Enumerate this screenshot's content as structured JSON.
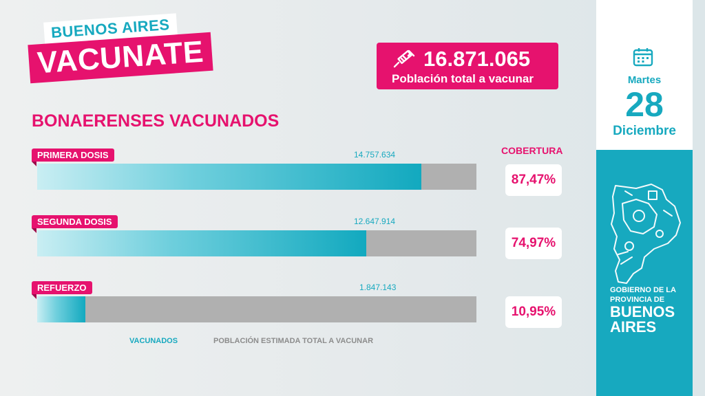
{
  "logo": {
    "top": "BUENOS AIRES",
    "bottom": "VACUNATE"
  },
  "population": {
    "value": "16.871.065",
    "label": "Población total a vacunar",
    "icon": "syringe-icon"
  },
  "title": "BONAERENSES VACUNADOS",
  "coverage_title": "COBERTURA",
  "rows": [
    {
      "label": "PRIMERA DOSIS",
      "value": "14.757.634",
      "coverage": "87,47%"
    },
    {
      "label": "SEGUNDA DOSIS",
      "value": "12.647.914",
      "coverage": "74,97%"
    },
    {
      "label": "REFUERZO",
      "value": "1.847.143",
      "coverage": "10,95%"
    }
  ],
  "legend": {
    "vaccinated": "VACUNADOS",
    "population": "POBLACIÓN ESTIMADA TOTAL A VACUNAR"
  },
  "date": {
    "weekday": "Martes",
    "day": "28",
    "month": "Diciembre",
    "icon": "calendar-icon"
  },
  "government": {
    "line1": "GOBIERNO DE LA",
    "line2": "PROVINCIA DE",
    "line3": "BUENOS",
    "line4": "AIRES"
  },
  "colors": {
    "accent": "#e6126e",
    "teal": "#17a9bf",
    "track": "#b0b0b0"
  },
  "chart_data": {
    "type": "bar",
    "orientation": "horizontal",
    "categories": [
      "PRIMERA DOSIS",
      "SEGUNDA DOSIS",
      "REFUERZO"
    ],
    "series": [
      {
        "name": "VACUNADOS",
        "values": [
          14757634,
          12647914,
          1847143
        ]
      },
      {
        "name": "POBLACIÓN ESTIMADA TOTAL A VACUNAR",
        "values": [
          16871065,
          16871065,
          16871065
        ]
      }
    ],
    "coverage_percent": [
      87.47,
      74.97,
      10.95
    ],
    "title": "BONAERENSES VACUNADOS",
    "legend": "bottom"
  }
}
